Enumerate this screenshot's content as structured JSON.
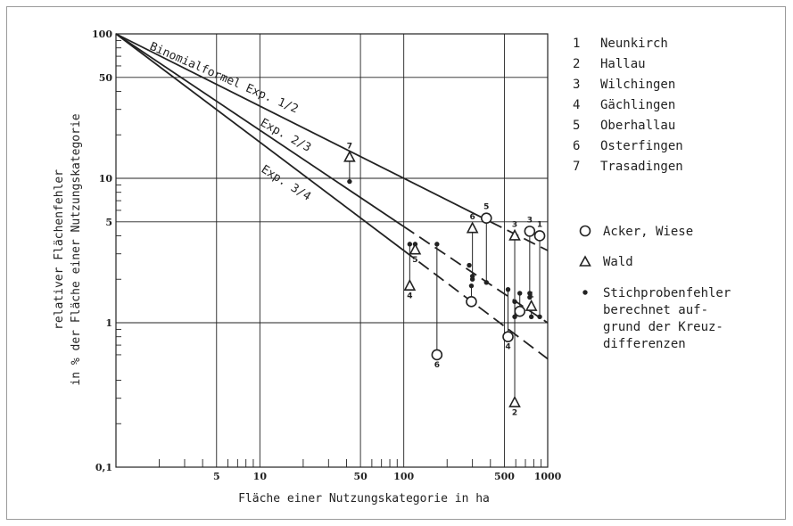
{
  "chart_data": {
    "type": "scatter",
    "xlabel": "Fläche einer Nutzungskategorie in ha",
    "ylabel_line1": "relativer Flächenfehler",
    "ylabel_line2": "in % der Fläche einer Nutzungskategorie",
    "x_scale": "log",
    "y_scale": "log",
    "xlim": [
      1,
      1000
    ],
    "ylim": [
      0.1,
      100
    ],
    "x_ticks": [
      {
        "value": 5,
        "label": "5"
      },
      {
        "value": 10,
        "label": "10"
      },
      {
        "value": 50,
        "label": "50"
      },
      {
        "value": 100,
        "label": "100"
      },
      {
        "value": 500,
        "label": "500"
      },
      {
        "value": 1000,
        "label": "1000"
      }
    ],
    "y_ticks": [
      {
        "value": 100,
        "label": "100"
      },
      {
        "value": 50,
        "label": "50"
      },
      {
        "value": 10,
        "label": "10"
      },
      {
        "value": 5,
        "label": "5"
      },
      {
        "value": 1,
        "label": "1"
      },
      {
        "value": 0.1,
        "label": "0,1"
      }
    ],
    "grid": true,
    "lines": [
      {
        "name": "Binomialformel Exp. 1/2",
        "exponent": 0.5,
        "x_start": 1,
        "y_start": 100,
        "solid_until": 400,
        "x_end": 1000,
        "y_end": 3.16
      },
      {
        "name": "Exp. 2/3",
        "exponent": 0.667,
        "x_start": 1,
        "y_start": 100,
        "solid_until": 100,
        "x_end": 1000,
        "y_end": 1.0
      },
      {
        "name": "Exp. 3/4",
        "exponent": 0.75,
        "x_start": 1,
        "y_start": 100,
        "solid_until": 100,
        "x_end": 1000,
        "y_end": 0.56
      }
    ],
    "line_labels": [
      "Binomialformel Exp. 1/2",
      "Exp. 2/3",
      "Exp. 3/4"
    ],
    "series": [
      {
        "name": "Acker, Wiese",
        "marker": "circle",
        "points": [
          {
            "x": 170,
            "y": 0.6,
            "sample_error": 3.5,
            "municipality": "6"
          },
          {
            "x": 295,
            "y": 1.4,
            "sample_error": 1.8,
            "municipality": ""
          },
          {
            "x": 375,
            "y": 5.3,
            "sample_error": 1.9,
            "municipality": "5"
          },
          {
            "x": 530,
            "y": 0.8,
            "sample_error": 1.7,
            "municipality": "4"
          },
          {
            "x": 640,
            "y": 1.2,
            "sample_error": 1.6,
            "municipality": ""
          },
          {
            "x": 750,
            "y": 4.3,
            "sample_error": 1.5,
            "municipality": "3"
          },
          {
            "x": 880,
            "y": 4.0,
            "sample_error": 1.1,
            "municipality": "1"
          }
        ]
      },
      {
        "name": "Wald",
        "marker": "triangle",
        "points": [
          {
            "x": 42,
            "y": 14,
            "sample_error": 9.5,
            "municipality": "7"
          },
          {
            "x": 110,
            "y": 1.8,
            "sample_error": 3.5,
            "municipality": "4"
          },
          {
            "x": 120,
            "y": 3.2,
            "sample_error": 3.5,
            "municipality": "5"
          },
          {
            "x": 300,
            "y": 4.5,
            "sample_error": 2.0,
            "municipality": "6"
          },
          {
            "x": 590,
            "y": 0.28,
            "sample_error": 1.4,
            "municipality": "2"
          },
          {
            "x": 590,
            "y": 4.0,
            "sample_error": 1.1,
            "municipality": "3"
          },
          {
            "x": 770,
            "y": 1.3,
            "sample_error": 1.1,
            "municipality": "1"
          }
        ]
      }
    ],
    "extra_sample_points": [
      {
        "x": 285,
        "y": 2.5
      },
      {
        "x": 300,
        "y": 2.1
      },
      {
        "x": 750,
        "y": 1.6
      }
    ],
    "legend_municipalities": [
      {
        "num": "1",
        "name": "Neunkirch"
      },
      {
        "num": "2",
        "name": "Hallau"
      },
      {
        "num": "3",
        "name": "Wilchingen"
      },
      {
        "num": "4",
        "name": "Gächlingen"
      },
      {
        "num": "5",
        "name": "Oberhallau"
      },
      {
        "num": "6",
        "name": "Osterfingen"
      },
      {
        "num": "7",
        "name": "Trasadingen"
      }
    ],
    "legend_symbols": {
      "circle": "Acker, Wiese",
      "triangle": "Wald",
      "dot_lines": [
        "Stichprobenfehler",
        "berechnet auf-",
        "grund der Kreuz-",
        "differenzen"
      ]
    }
  }
}
